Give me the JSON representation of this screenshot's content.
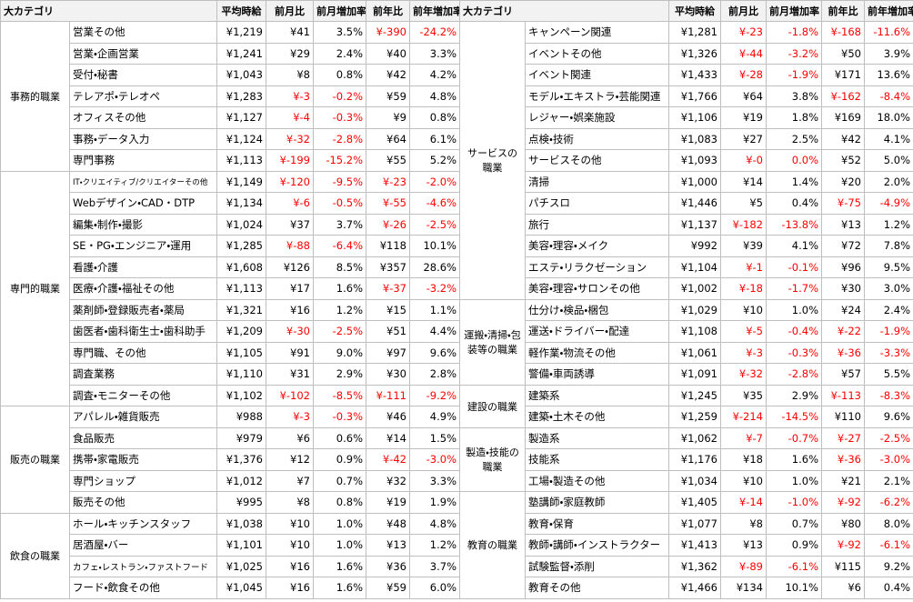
{
  "table": {
    "header": [
      "大カテゴリ",
      "平均時給",
      "前月比",
      "前月増加率",
      "前年比",
      "前年増加率"
    ],
    "left": [
      {
        "category": "事務的職業",
        "rows": [
          [
            "営業その他",
            "¥1,219",
            "¥41",
            "3.5%",
            "¥-390",
            "-24.2%"
          ],
          [
            "営業・企画営業",
            "¥1,241",
            "¥29",
            "2.4%",
            "¥40",
            "3.3%"
          ],
          [
            "受付・秘書",
            "¥1,043",
            "¥8",
            "0.8%",
            "¥42",
            "4.2%"
          ],
          [
            "テレアポ・テレオペ",
            "¥1,283",
            "¥-3",
            "-0.2%",
            "¥59",
            "4.8%"
          ],
          [
            "オフィスその他",
            "¥1,127",
            "¥-4",
            "-0.3%",
            "¥9",
            "0.8%"
          ],
          [
            "事務・データ入力",
            "¥1,124",
            "¥-32",
            "-2.8%",
            "¥64",
            "6.1%"
          ],
          [
            "専門事務",
            "¥1,113",
            "¥-199",
            "-15.2%",
            "¥55",
            "5.2%"
          ]
        ]
      },
      {
        "category": "専門的職業",
        "rows": [
          [
            "IT・クリエイティブ/クリエイターその他",
            "¥1,149",
            "¥-120",
            "-9.5%",
            "¥-23",
            "-2.0%"
          ],
          [
            "Webデザイン・CAD・DTP",
            "¥1,134",
            "¥-6",
            "-0.5%",
            "¥-55",
            "-4.6%"
          ],
          [
            "編集・制作・撮影",
            "¥1,024",
            "¥37",
            "3.7%",
            "¥-26",
            "-2.5%"
          ],
          [
            "SE・PG・エンジニア・運用",
            "¥1,285",
            "¥-88",
            "-6.4%",
            "¥118",
            "10.1%"
          ],
          [
            "看護・介護",
            "¥1,608",
            "¥126",
            "8.5%",
            "¥357",
            "28.6%"
          ],
          [
            "医療・介護・福祉その他",
            "¥1,113",
            "¥17",
            "1.6%",
            "¥-37",
            "-3.2%"
          ],
          [
            "薬剤師・登録販売者・薬局",
            "¥1,321",
            "¥16",
            "1.2%",
            "¥15",
            "1.1%"
          ],
          [
            "歯医者・歯科衛生士・歯科助手",
            "¥1,209",
            "¥-30",
            "-2.5%",
            "¥51",
            "4.4%"
          ],
          [
            "専門職、その他",
            "¥1,105",
            "¥91",
            "9.0%",
            "¥97",
            "9.6%"
          ],
          [
            "調査業務",
            "¥1,110",
            "¥31",
            "2.9%",
            "¥30",
            "2.8%"
          ],
          [
            "調査・モニターその他",
            "¥1,102",
            "¥-102",
            "-8.5%",
            "¥-111",
            "-9.2%"
          ]
        ]
      },
      {
        "category": "販売の職業",
        "rows": [
          [
            "アパレル・雑貨販売",
            "¥988",
            "¥-3",
            "-0.3%",
            "¥46",
            "4.9%"
          ],
          [
            "食品販売",
            "¥979",
            "¥6",
            "0.6%",
            "¥14",
            "1.5%"
          ],
          [
            "携帯・家電販売",
            "¥1,376",
            "¥12",
            "0.9%",
            "¥-42",
            "-3.0%"
          ],
          [
            "専門ショップ",
            "¥1,012",
            "¥7",
            "0.7%",
            "¥32",
            "3.3%"
          ],
          [
            "販売その他",
            "¥995",
            "¥8",
            "0.8%",
            "¥19",
            "1.9%"
          ]
        ]
      },
      {
        "category": "飲食の職業",
        "rows": [
          [
            "ホール・キッチンスタッフ",
            "¥1,038",
            "¥10",
            "1.0%",
            "¥48",
            "4.8%"
          ],
          [
            "居酒屋・バー",
            "¥1,101",
            "¥10",
            "1.0%",
            "¥13",
            "1.2%"
          ],
          [
            "カフェ・レストラン・ファストフード",
            "¥1,025",
            "¥16",
            "1.6%",
            "¥36",
            "3.7%"
          ],
          [
            "フード・飲食その他",
            "¥1,045",
            "¥16",
            "1.6%",
            "¥59",
            "6.0%"
          ]
        ]
      }
    ],
    "right": [
      {
        "category": "サービスの職業",
        "rows": [
          [
            "キャンペーン関連",
            "¥1,281",
            "¥-23",
            "-1.8%",
            "¥-168",
            "-11.6%"
          ],
          [
            "イベントその他",
            "¥1,326",
            "¥-44",
            "-3.2%",
            "¥50",
            "3.9%"
          ],
          [
            "イベント関連",
            "¥1,433",
            "¥-28",
            "-1.9%",
            "¥171",
            "13.6%"
          ],
          [
            "モデル・エキストラ・芸能関連",
            "¥1,766",
            "¥64",
            "3.8%",
            "¥-162",
            "-8.4%"
          ],
          [
            "レジャー・娯楽施設",
            "¥1,106",
            "¥19",
            "1.8%",
            "¥169",
            "18.0%"
          ],
          [
            "点検・技術",
            "¥1,083",
            "¥27",
            "2.5%",
            "¥42",
            "4.1%"
          ],
          [
            "サービスその他",
            "¥1,093",
            "¥-0",
            "0.0%",
            "¥52",
            "5.0%"
          ],
          [
            "清掃",
            "¥1,000",
            "¥14",
            "1.4%",
            "¥20",
            "2.0%"
          ],
          [
            "パチスロ",
            "¥1,446",
            "¥5",
            "0.4%",
            "¥-75",
            "-4.9%"
          ],
          [
            "旅行",
            "¥1,137",
            "¥-182",
            "-13.8%",
            "¥13",
            "1.2%"
          ],
          [
            "美容・理容・メイク",
            "¥992",
            "¥39",
            "4.1%",
            "¥72",
            "7.8%"
          ],
          [
            "エステ・リラクゼーション",
            "¥1,104",
            "¥-1",
            "-0.1%",
            "¥96",
            "9.5%"
          ],
          [
            "美容・理容・サロンその他",
            "¥1,002",
            "¥-18",
            "-1.7%",
            "¥30",
            "3.0%"
          ]
        ]
      },
      {
        "category": "運搬・清掃・包装等の職業",
        "rows": [
          [
            "仕分け・検品・梱包",
            "¥1,029",
            "¥10",
            "1.0%",
            "¥24",
            "2.4%"
          ],
          [
            "運送・ドライバー・配達",
            "¥1,108",
            "¥-5",
            "-0.4%",
            "¥-22",
            "-1.9%"
          ],
          [
            "軽作業・物流その他",
            "¥1,061",
            "¥-3",
            "-0.3%",
            "¥-36",
            "-3.3%"
          ],
          [
            "警備・車両誘導",
            "¥1,091",
            "¥-32",
            "-2.8%",
            "¥57",
            "5.5%"
          ]
        ]
      },
      {
        "category": "建設の職業",
        "rows": [
          [
            "建築系",
            "¥1,245",
            "¥35",
            "2.9%",
            "¥-113",
            "-8.3%"
          ],
          [
            "建築・土木その他",
            "¥1,259",
            "¥-214",
            "-14.5%",
            "¥110",
            "9.6%"
          ]
        ]
      },
      {
        "category": "製造・技能の職業",
        "rows": [
          [
            "製造系",
            "¥1,062",
            "¥-7",
            "-0.7%",
            "¥-27",
            "-2.5%"
          ],
          [
            "技能系",
            "¥1,176",
            "¥18",
            "1.6%",
            "¥-36",
            "-3.0%"
          ],
          [
            "工場・製造その他",
            "¥1,034",
            "¥10",
            "1.0%",
            "¥21",
            "2.1%"
          ]
        ]
      },
      {
        "category": "教育の職業",
        "rows": [
          [
            "塾講師・家庭教師",
            "¥1,405",
            "¥-14",
            "-1.0%",
            "¥-92",
            "-6.2%"
          ],
          [
            "教育・保育",
            "¥1,077",
            "¥8",
            "0.7%",
            "¥80",
            "8.0%"
          ],
          [
            "教師・講師・インストラクター",
            "¥1,413",
            "¥13",
            "0.9%",
            "¥-92",
            "-6.1%"
          ],
          [
            "試験監督・添削",
            "¥1,362",
            "¥-89",
            "-6.1%",
            "¥115",
            "9.2%"
          ],
          [
            "教育その他",
            "¥1,466",
            "¥134",
            "10.1%",
            "¥6",
            "0.4%"
          ]
        ]
      }
    ]
  }
}
